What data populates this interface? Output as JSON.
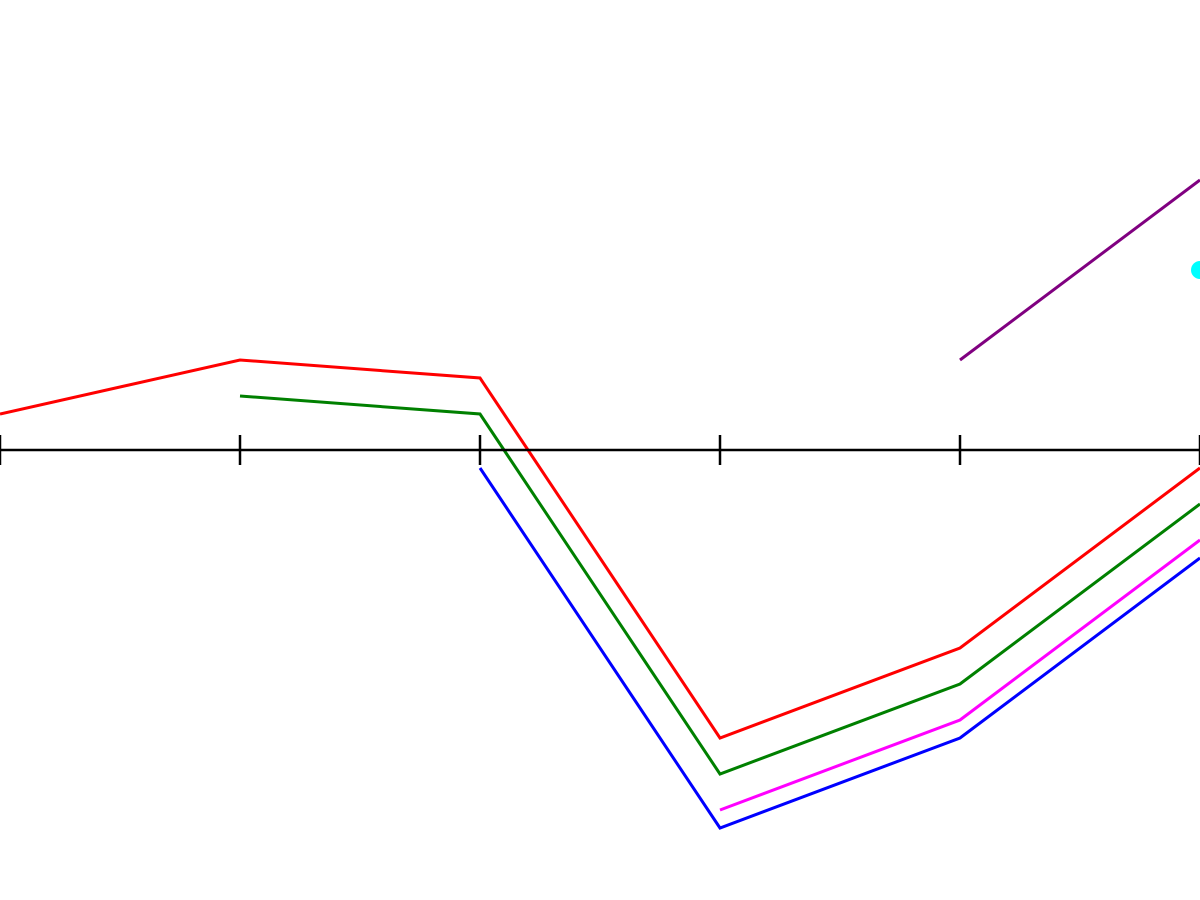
{
  "chart_data": {
    "type": "line",
    "x": [
      0,
      1,
      2,
      3,
      4,
      5
    ],
    "xlim": [
      0,
      5
    ],
    "ylim": [
      -25,
      25
    ],
    "grid": false,
    "axis": {
      "color": "#000000",
      "x_axis_at_y": 0,
      "ticks_at": [
        0,
        1,
        2,
        3,
        4,
        5
      ]
    },
    "series": [
      {
        "color": "#ff0000",
        "values": [
          2,
          5,
          4,
          -16,
          -11,
          -1
        ]
      },
      {
        "color": "#008000",
        "values": [
          null,
          3,
          2,
          -18,
          -13,
          -3
        ]
      },
      {
        "color": "#0000ff",
        "values": [
          null,
          null,
          -1,
          -21,
          -16,
          -6
        ]
      },
      {
        "color": "#ff00ff",
        "values": [
          null,
          null,
          null,
          -20,
          -15,
          -5
        ]
      },
      {
        "color": "#800080",
        "values": [
          null,
          null,
          null,
          null,
          5,
          15
        ]
      },
      {
        "color": "#00ffff",
        "marker": "point",
        "values": [
          null,
          null,
          null,
          null,
          null,
          10
        ]
      }
    ]
  }
}
